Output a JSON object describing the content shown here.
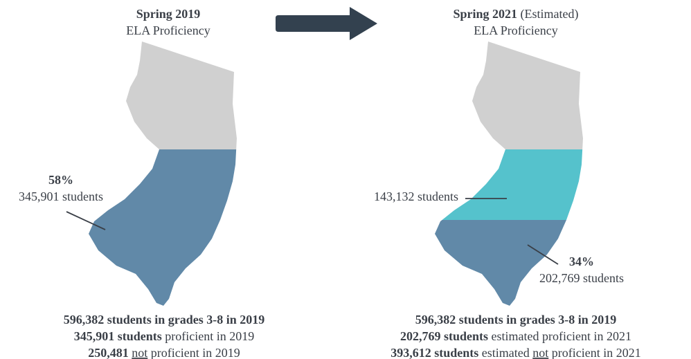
{
  "left": {
    "title": "Spring 2019",
    "subtitle": "ELA Proficiency",
    "annotation": {
      "percent": "58%",
      "students": "345,901 students"
    },
    "summary": [
      [
        {
          "text": "596,382 students in grades 3-8 in 2019",
          "style": "bold"
        }
      ],
      [
        {
          "text": "345,901 students",
          "style": "bold"
        },
        {
          "text": " proficient in 2019",
          "style": "plain"
        }
      ],
      [
        {
          "text": "250,481 ",
          "style": "bold"
        },
        {
          "text": "not",
          "style": "underline"
        },
        {
          "text": " proficient in 2019",
          "style": "plain"
        }
      ]
    ]
  },
  "right": {
    "title": "Spring 2021",
    "title_note": " (Estimated)",
    "subtitle": "ELA Proficiency",
    "annotation_top": {
      "students": "143,132 students"
    },
    "annotation_bottom": {
      "percent": "34%",
      "students": "202,769 students"
    },
    "summary": [
      [
        {
          "text": "596,382 students in grades 3-8 in 2019",
          "style": "bold"
        }
      ],
      [
        {
          "text": "202,769 students",
          "style": "bold"
        },
        {
          "text": " estimated proficient in 2021",
          "style": "plain"
        }
      ],
      [
        {
          "text": "393,612 students",
          "style": "bold"
        },
        {
          "text": " estimated ",
          "style": "plain"
        },
        {
          "text": "not",
          "style": "underline"
        },
        {
          "text": " proficient in 2021",
          "style": "plain"
        }
      ]
    ]
  }
}
